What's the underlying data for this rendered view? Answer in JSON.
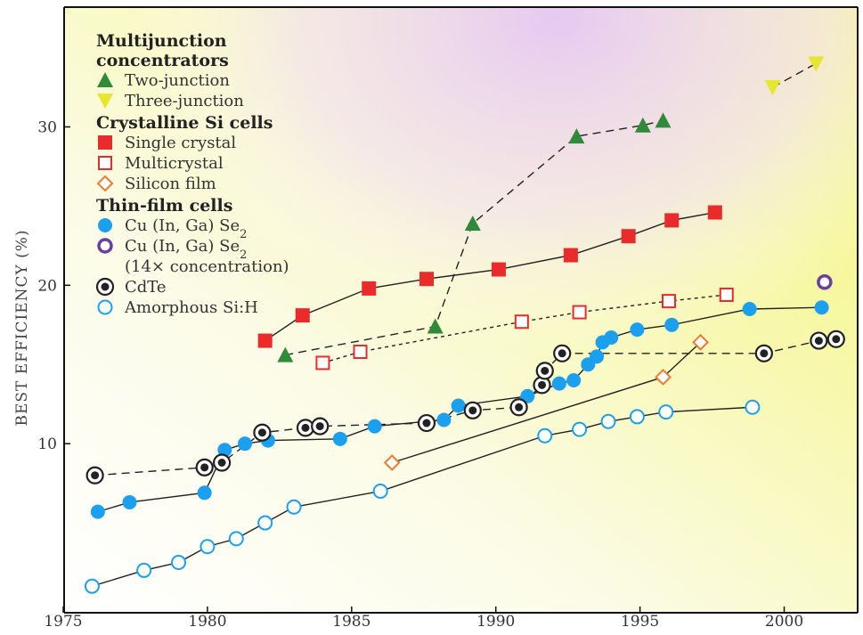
{
  "colors": {
    "two_junction": "#2f8a3a",
    "three_junction": "#e6e62c",
    "single_crystal": "#ea2b2b",
    "multicrystal": "#ea2b2b",
    "silicon_film": "#f07a2e",
    "cigs": "#1aa0ee",
    "cigs_conc": "#6a3fa0",
    "cdte": "#222222",
    "amorphous": "#1aa0ee",
    "line": "#222222"
  },
  "legend": {
    "groups": [
      {
        "title": "Multijunction\nconcentrators",
        "items": [
          {
            "label": "Two-junction",
            "marker": "triangle-up",
            "color": "#2f8a3a"
          },
          {
            "label": "Three-junction",
            "marker": "triangle-down",
            "color": "#e6e62c"
          }
        ]
      },
      {
        "title": "Crystalline Si cells",
        "items": [
          {
            "label": "Single crystal",
            "marker": "square-filled",
            "color": "#ea2b2b"
          },
          {
            "label": "Multicrystal",
            "marker": "square-open",
            "color": "#ea2b2b"
          },
          {
            "label": "Silicon film",
            "marker": "diamond-open",
            "color": "#f07a2e"
          }
        ]
      },
      {
        "title": "Thin-film cells",
        "items": [
          {
            "label": "Cu (In, Ga) Se2",
            "marker": "circle-filled",
            "color": "#1aa0ee"
          },
          {
            "label": "Cu (In, Ga) Se2\n(14× concentration)",
            "marker": "circle-open-thick",
            "color": "#6a3fa0"
          },
          {
            "label": "CdTe",
            "marker": "circle-dot",
            "color": "#222222"
          },
          {
            "label": "Amorphous Si:H",
            "marker": "circle-open",
            "color": "#1aa0ee"
          }
        ]
      }
    ]
  },
  "chart_data": {
    "type": "line",
    "xlabel": "",
    "ylabel": "BEST EFFICIENCY (%)",
    "xlim": [
      1975,
      2002.3
    ],
    "ylim": [
      0,
      37
    ],
    "x_ticks": [
      1975,
      1980,
      1985,
      1990,
      1995,
      2000
    ],
    "x_tick_labels": [
      "1975",
      "1980",
      "1985",
      "1990",
      "1995",
      "2000"
    ],
    "y_ticks": [
      10,
      20,
      30
    ],
    "y_tick_labels": [
      "10",
      "20",
      "30"
    ],
    "series": [
      {
        "name": "Two-junction",
        "marker": "triangle-up",
        "line": "dashed",
        "x": [
          1982.7,
          1987.9,
          1989.2,
          1992.8,
          1995.1,
          1995.8
        ],
        "y": [
          15.6,
          17.4,
          23.9,
          29.4,
          30.1,
          30.4
        ]
      },
      {
        "name": "Three-junction",
        "marker": "triangle-down",
        "line": "dashed",
        "x": [
          1999.6,
          2001.1
        ],
        "y": [
          32.5,
          34.0
        ]
      },
      {
        "name": "Single crystal",
        "marker": "square-filled",
        "line": "solid",
        "x": [
          1982.0,
          1983.3,
          1985.6,
          1987.6,
          1990.1,
          1992.6,
          1994.6,
          1996.1,
          1997.6
        ],
        "y": [
          16.5,
          18.1,
          19.8,
          20.4,
          21.0,
          21.9,
          23.1,
          24.1,
          24.6
        ]
      },
      {
        "name": "Multicrystal",
        "marker": "square-open",
        "line": "dotted",
        "x": [
          1984.0,
          1985.3,
          1990.9,
          1992.9,
          1996.0,
          1998.0
        ],
        "y": [
          15.1,
          15.8,
          17.7,
          18.3,
          19.0,
          19.4
        ]
      },
      {
        "name": "Silicon film",
        "marker": "diamond-open",
        "line": "solid",
        "x": [
          1986.4,
          1995.8,
          1997.1
        ],
        "y": [
          8.8,
          14.2,
          16.4
        ]
      },
      {
        "name": "Cu (In, Ga) Se2",
        "marker": "circle-filled",
        "line": "solid",
        "x": [
          1976.2,
          1977.3,
          1979.9,
          1980.6,
          1981.3,
          1982.1,
          1984.6,
          1985.8,
          1988.2,
          1988.7,
          1991.1,
          1992.2,
          1992.7,
          1993.2,
          1993.5,
          1993.7,
          1994.0,
          1994.9,
          1996.1,
          1998.8,
          2001.3
        ],
        "y": [
          5.7,
          6.3,
          6.9,
          9.6,
          10.0,
          10.2,
          10.3,
          11.1,
          11.5,
          12.4,
          13.0,
          13.8,
          14.0,
          15.0,
          15.5,
          16.4,
          16.7,
          17.2,
          17.5,
          18.5,
          18.6
        ]
      },
      {
        "name": "Cu (In, Ga) Se2 (14× concentration)",
        "marker": "circle-open-thick",
        "line": "none",
        "x": [
          2001.4
        ],
        "y": [
          20.2
        ]
      },
      {
        "name": "CdTe",
        "marker": "circle-dot",
        "line": "dashed",
        "x": [
          1976.1,
          1979.9,
          1980.5,
          1981.9,
          1983.4,
          1983.9,
          1987.6,
          1989.2,
          1990.8,
          1991.6,
          1991.7,
          1992.3,
          1999.3,
          2001.2,
          2001.8
        ],
        "y": [
          8.0,
          8.5,
          8.8,
          10.7,
          11.0,
          11.1,
          11.3,
          12.1,
          12.3,
          13.7,
          14.6,
          15.7,
          15.7,
          16.5,
          16.6
        ]
      },
      {
        "name": "Amorphous Si:H",
        "marker": "circle-open",
        "line": "solid",
        "x": [
          1976.0,
          1977.8,
          1979.0,
          1980.0,
          1981.0,
          1982.0,
          1983.0,
          1986.0,
          1991.7,
          1992.9,
          1993.9,
          1994.9,
          1995.9,
          1998.9
        ],
        "y": [
          1.0,
          2.0,
          2.5,
          3.5,
          4.0,
          5.0,
          6.0,
          7.0,
          10.5,
          10.9,
          11.4,
          11.7,
          12.0,
          12.3
        ]
      }
    ]
  }
}
